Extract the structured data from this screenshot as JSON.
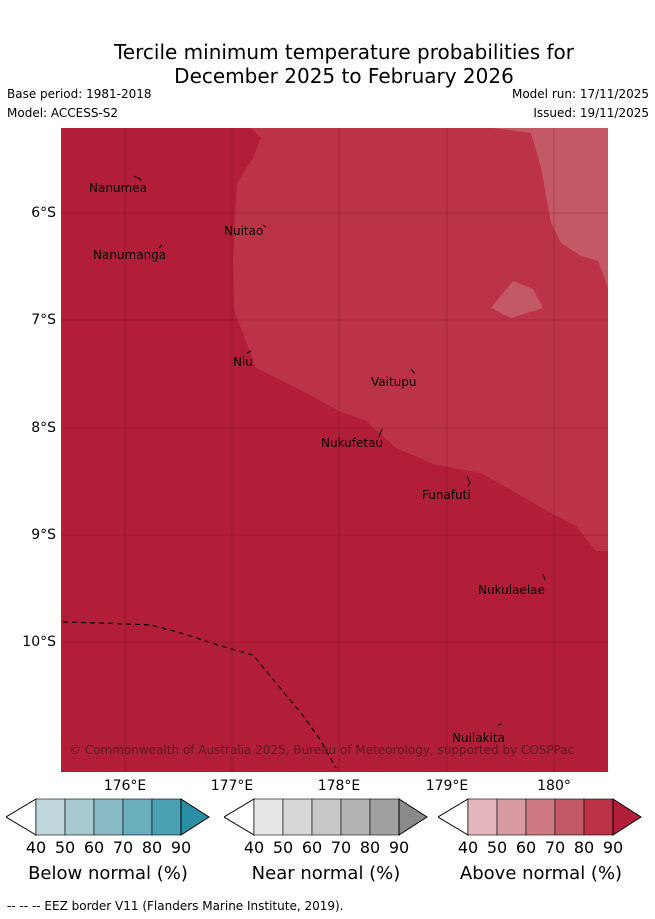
{
  "title_line1": "Tercile minimum temperature probabilities for",
  "title_line2": "December 2025 to February 2026",
  "base_period": "Base period: 1981-2018",
  "model": "Model: ACCESS-S2",
  "model_run": "Model run: 17/11/2025",
  "issued": "Issued: 19/11/2025",
  "lon_labels": [
    "176°E",
    "177°E",
    "178°E",
    "179°E",
    "180°"
  ],
  "lat_labels": [
    "6°S",
    "7°S",
    "8°S",
    "9°S",
    "10°S"
  ],
  "islands": [
    "Nanumea",
    "Nuitao",
    "Nanumanga",
    "Niu",
    "Vaitupu",
    "Nukufetau",
    "Funafuti",
    "Nukulaelae",
    "Nuilakita"
  ],
  "copyright": "© Commonwealth of Australia 2025, Bureau of Meteorology, supported by COSPPac",
  "legend": {
    "below": {
      "title": "Below normal (%)",
      "ticks": [
        "40",
        "50",
        "60",
        "70",
        "80",
        "90"
      ],
      "colors": [
        "#bfd6dc",
        "#a6c9cf",
        "#89b9c4",
        "#6aaebd",
        "#4aa1b2",
        "#2b8ea4"
      ]
    },
    "near": {
      "title": "Near normal (%)",
      "ticks": [
        "40",
        "50",
        "60",
        "70",
        "80",
        "90"
      ],
      "colors": [
        "#e6e6e6",
        "#d7d7d7",
        "#c8c8c8",
        "#b4b4b4",
        "#a0a0a0",
        "#8a8a8a"
      ]
    },
    "above": {
      "title": "Above normal (%)",
      "ticks": [
        "40",
        "50",
        "60",
        "70",
        "80",
        "90"
      ],
      "colors": [
        "#e4b6bd",
        "#d89aa1",
        "#cf7a82",
        "#c45966",
        "#bc3348",
        "#b21e38"
      ]
    }
  },
  "map_colors": {
    "level_90": "#b21e38",
    "level_80": "#bc3348",
    "level_70": "#c45966"
  },
  "footnote": "--  --  -- EEZ border V11 (Flanders Marine Institute, 2019)."
}
